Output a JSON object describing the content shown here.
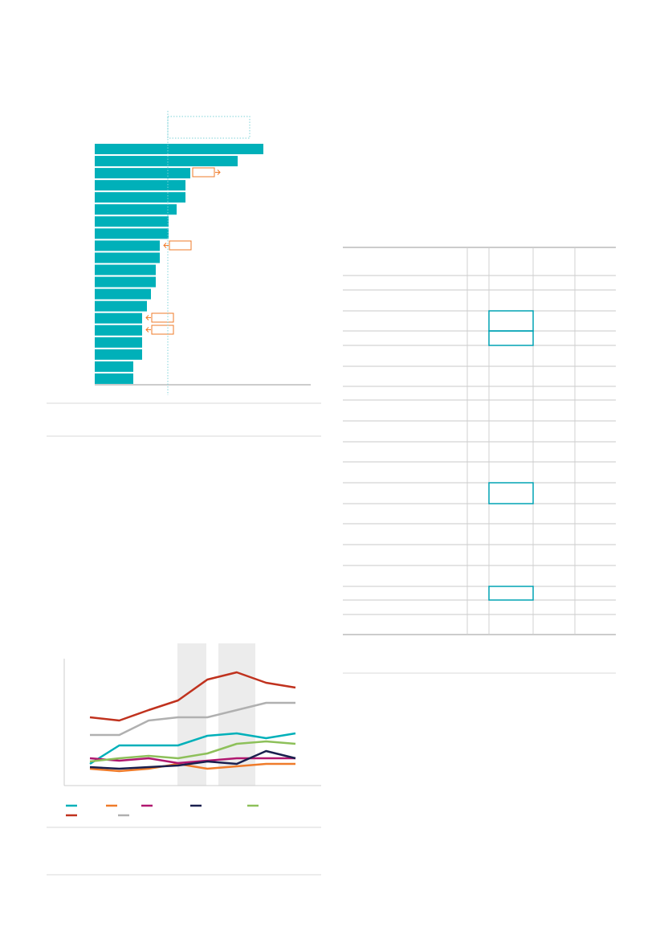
{
  "chart_data": [
    {
      "type": "barh",
      "values": [
        210,
        178,
        119,
        113,
        113,
        102,
        92,
        92,
        81,
        81,
        76,
        76,
        70,
        65,
        59,
        59,
        59,
        59,
        48,
        48
      ],
      "color": "#00b0b9",
      "xlim": [
        0,
        269
      ],
      "reference": 91
    },
    {
      "type": "line",
      "categories": [
        null,
        null,
        null,
        null,
        null,
        null,
        null,
        null
      ],
      "ylim": [
        0,
        158
      ],
      "series": [
        {
          "color": "#00b0b9",
          "values": [
            27,
            50,
            50,
            50,
            62,
            65,
            59,
            65
          ]
        },
        {
          "color": "#ef7b2a",
          "values": [
            21,
            18,
            21,
            27,
            21,
            24,
            27,
            27
          ]
        },
        {
          "color": "#b0176f",
          "values": [
            34,
            31,
            34,
            28,
            31,
            34,
            34,
            34
          ]
        },
        {
          "color": "#1a1f4e",
          "values": [
            23,
            21,
            23,
            25,
            30,
            27,
            43,
            34
          ]
        },
        {
          "color": "#8dc05a",
          "values": [
            30,
            34,
            37,
            34,
            40,
            52,
            55,
            52
          ]
        },
        {
          "color": "#c0321e",
          "values": [
            85,
            81,
            94,
            106,
            132,
            141,
            128,
            122
          ]
        },
        {
          "color": "#b0b0b0",
          "values": [
            63,
            63,
            81,
            85,
            85,
            94,
            103,
            103
          ]
        }
      ]
    }
  ]
}
